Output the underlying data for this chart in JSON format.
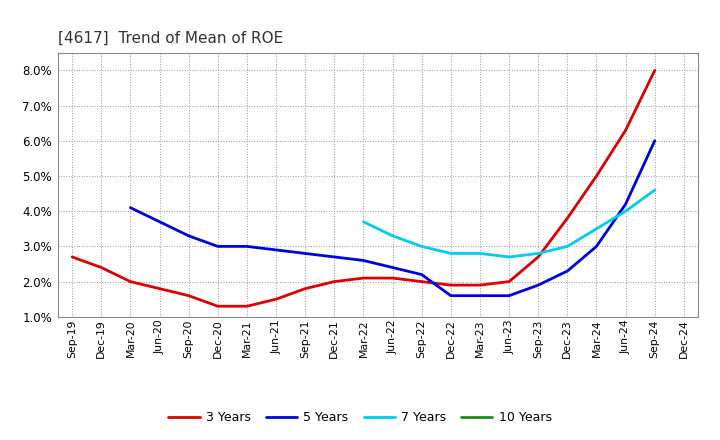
{
  "title": "[4617]  Trend of Mean of ROE",
  "title_fontsize": 11,
  "background_color": "#ffffff",
  "plot_bg_color": "#ffffff",
  "grid_color": "#999999",
  "ylim": [
    0.01,
    0.085
  ],
  "yticks": [
    0.01,
    0.02,
    0.03,
    0.04,
    0.05,
    0.06,
    0.07,
    0.08
  ],
  "x_labels": [
    "Sep-19",
    "Dec-19",
    "Mar-20",
    "Jun-20",
    "Sep-20",
    "Dec-20",
    "Mar-21",
    "Jun-21",
    "Sep-21",
    "Dec-21",
    "Mar-22",
    "Jun-22",
    "Sep-22",
    "Dec-22",
    "Mar-23",
    "Jun-23",
    "Sep-23",
    "Dec-23",
    "Mar-24",
    "Jun-24",
    "Sep-24",
    "Dec-24"
  ],
  "series": {
    "3 Years": {
      "color": "#dd0000",
      "linewidth": 2.0,
      "data": [
        0.027,
        0.024,
        0.02,
        0.018,
        0.016,
        0.013,
        0.013,
        0.015,
        0.018,
        0.02,
        0.021,
        0.021,
        0.02,
        0.019,
        0.019,
        0.02,
        0.027,
        0.038,
        0.05,
        0.063,
        0.08,
        null
      ]
    },
    "5 Years": {
      "color": "#0000dd",
      "linewidth": 2.0,
      "data": [
        null,
        null,
        0.041,
        0.037,
        0.033,
        0.03,
        0.03,
        0.029,
        0.028,
        0.027,
        0.026,
        0.024,
        0.022,
        0.016,
        0.016,
        0.016,
        0.019,
        0.023,
        0.03,
        0.042,
        0.06,
        null
      ]
    },
    "7 Years": {
      "color": "#00ccee",
      "linewidth": 2.0,
      "data": [
        null,
        null,
        null,
        null,
        null,
        null,
        null,
        null,
        null,
        null,
        0.037,
        0.033,
        0.03,
        0.028,
        0.028,
        0.027,
        0.028,
        0.03,
        0.035,
        0.04,
        0.046,
        null
      ]
    },
    "10 Years": {
      "color": "#228822",
      "linewidth": 2.0,
      "data": [
        null,
        null,
        null,
        null,
        null,
        null,
        null,
        null,
        null,
        null,
        null,
        null,
        null,
        null,
        null,
        null,
        null,
        null,
        null,
        null,
        null,
        null
      ]
    }
  },
  "legend_order": [
    "3 Years",
    "5 Years",
    "7 Years",
    "10 Years"
  ]
}
